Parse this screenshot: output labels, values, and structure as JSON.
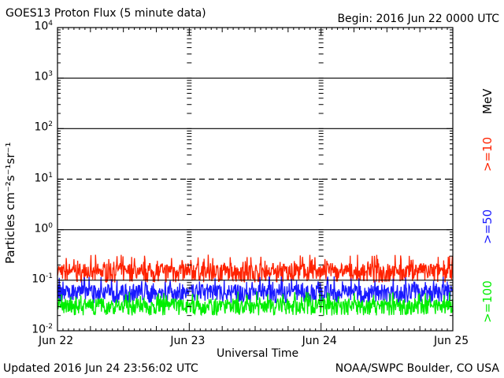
{
  "header": {
    "title": "GOES13 Proton Flux (5 minute data)",
    "begin": "Begin: 2016 Jun 22 0000 UTC"
  },
  "footer": {
    "updated": "Updated 2016 Jun 24 23:56:02 UTC",
    "source": "NOAA/SWPC Boulder, CO USA"
  },
  "chart_data": {
    "type": "line",
    "title": "GOES13 Proton Flux (5 minute data)",
    "xlabel": "Universal Time",
    "ylabel": "Particles cm⁻²s⁻¹sr⁻¹",
    "yscale": "log",
    "ylim": [
      0.01,
      10000
    ],
    "xlim": [
      "2016-06-22 00:00",
      "2016-06-25 00:00"
    ],
    "x_ticks": [
      "Jun 22",
      "Jun 23",
      "Jun 24",
      "Jun 25"
    ],
    "y_ticks": [
      {
        "base": "10",
        "exp": "-2"
      },
      {
        "base": "10",
        "exp": "-1"
      },
      {
        "base": "10",
        "exp": "0"
      },
      {
        "base": "10",
        "exp": "1"
      },
      {
        "base": "10",
        "exp": "2"
      },
      {
        "base": "10",
        "exp": "3"
      },
      {
        "base": "10",
        "exp": "4"
      }
    ],
    "grid": true,
    "legend_units": "MeV",
    "series": [
      {
        "name": ">=10",
        "color": "#ff2200",
        "typical": 0.16,
        "low": 0.09,
        "high": 0.32
      },
      {
        "name": ">=50",
        "color": "#1a1aff",
        "typical": 0.055,
        "low": 0.035,
        "high": 0.12
      },
      {
        "name": ">=100",
        "color": "#00ee00",
        "typical": 0.03,
        "low": 0.02,
        "high": 0.06
      }
    ]
  }
}
